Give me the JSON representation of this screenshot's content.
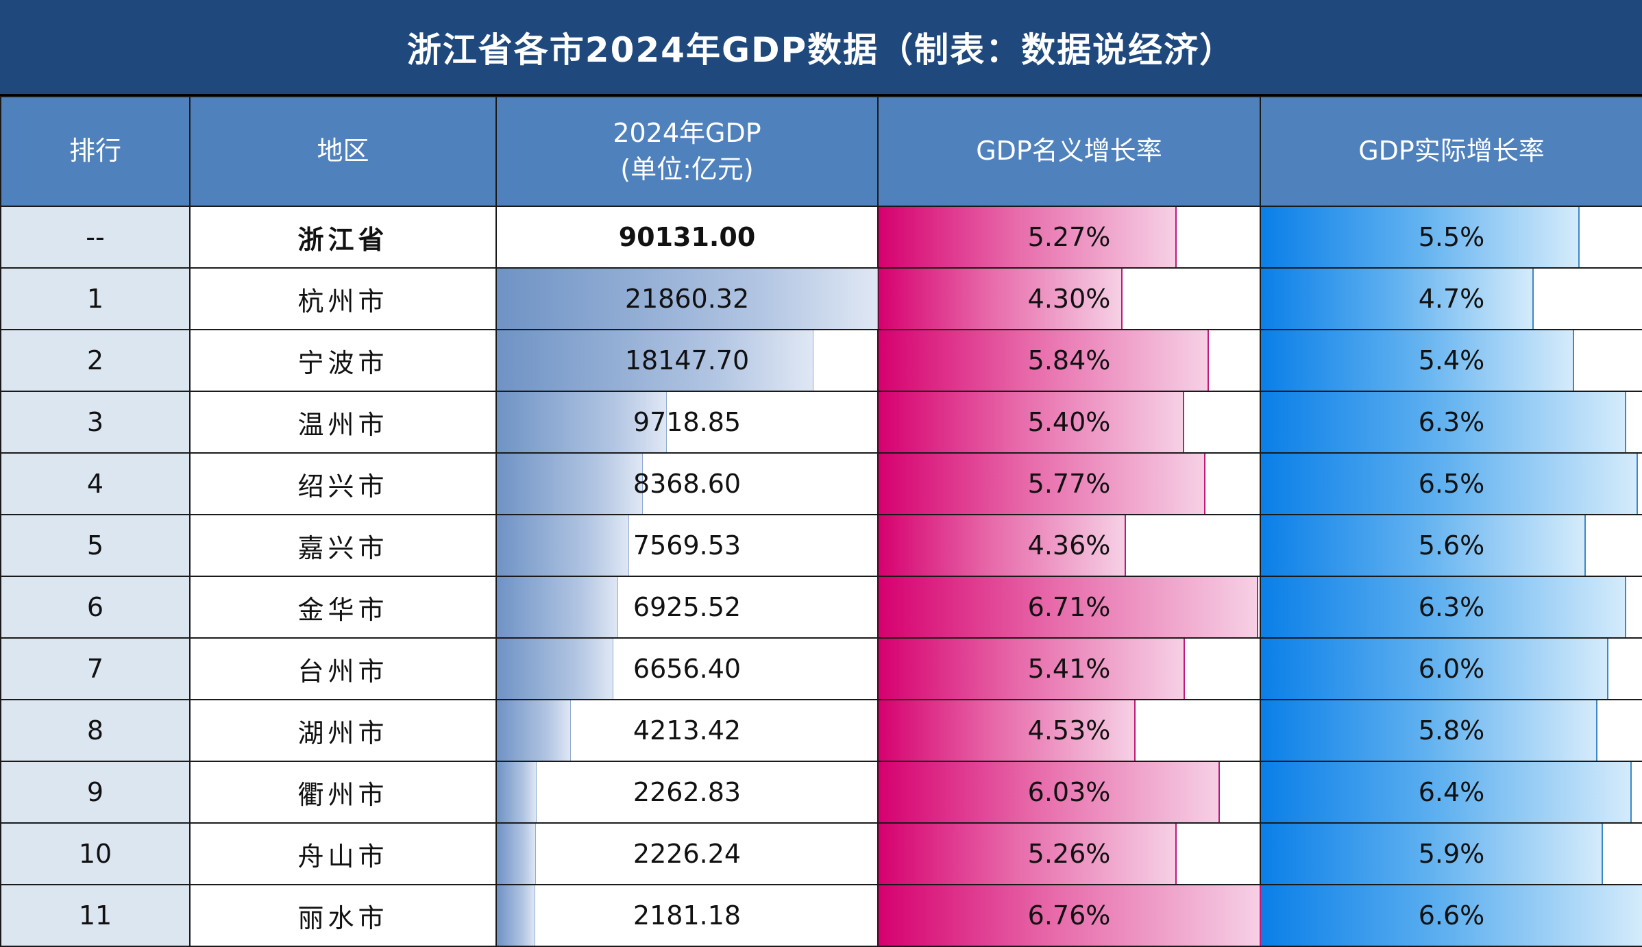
{
  "title": "浙江省各市2024年GDP数据（制表：数据说经济）",
  "headers": {
    "rank": "排行",
    "region": "地区",
    "gdp_line1": "2024年GDP",
    "gdp_line2": "(单位:亿元)",
    "nominal": "GDP名义增长率",
    "real": "GDP实际增长率"
  },
  "colors": {
    "title_bg": "#1f497d",
    "header_bg": "#4f81bd",
    "rank_bg": "#dce6f1",
    "gdp_bar": "#6f93c5",
    "nominal_bar": "#d6006f",
    "real_bar": "#0a7fe8"
  },
  "chart_data": {
    "type": "table",
    "title": "浙江省各市2024年GDP数据（制表：数据说经济）",
    "columns": [
      "排行",
      "地区",
      "2024年GDP (单位:亿元)",
      "GDP名义增长率",
      "GDP实际增长率"
    ],
    "rows": [
      {
        "rank": "--",
        "region": "浙江省",
        "gdp": 90131.0,
        "gdp_text": "90131.00",
        "nominal": 5.27,
        "nominal_text": "5.27%",
        "real": 5.5,
        "real_text": "5.5%",
        "total": true
      },
      {
        "rank": "1",
        "region": "杭州市",
        "gdp": 21860.32,
        "gdp_text": "21860.32",
        "nominal": 4.3,
        "nominal_text": "4.30%",
        "real": 4.7,
        "real_text": "4.7%"
      },
      {
        "rank": "2",
        "region": "宁波市",
        "gdp": 18147.7,
        "gdp_text": "18147.70",
        "nominal": 5.84,
        "nominal_text": "5.84%",
        "real": 5.4,
        "real_text": "5.4%"
      },
      {
        "rank": "3",
        "region": "温州市",
        "gdp": 9718.85,
        "gdp_text": "9718.85",
        "nominal": 5.4,
        "nominal_text": "5.40%",
        "real": 6.3,
        "real_text": "6.3%"
      },
      {
        "rank": "4",
        "region": "绍兴市",
        "gdp": 8368.6,
        "gdp_text": "8368.60",
        "nominal": 5.77,
        "nominal_text": "5.77%",
        "real": 6.5,
        "real_text": "6.5%"
      },
      {
        "rank": "5",
        "region": "嘉兴市",
        "gdp": 7569.53,
        "gdp_text": "7569.53",
        "nominal": 4.36,
        "nominal_text": "4.36%",
        "real": 5.6,
        "real_text": "5.6%"
      },
      {
        "rank": "6",
        "region": "金华市",
        "gdp": 6925.52,
        "gdp_text": "6925.52",
        "nominal": 6.71,
        "nominal_text": "6.71%",
        "real": 6.3,
        "real_text": "6.3%"
      },
      {
        "rank": "7",
        "region": "台州市",
        "gdp": 6656.4,
        "gdp_text": "6656.40",
        "nominal": 5.41,
        "nominal_text": "5.41%",
        "real": 6.0,
        "real_text": "6.0%"
      },
      {
        "rank": "8",
        "region": "湖州市",
        "gdp": 4213.42,
        "gdp_text": "4213.42",
        "nominal": 4.53,
        "nominal_text": "4.53%",
        "real": 5.8,
        "real_text": "5.8%"
      },
      {
        "rank": "9",
        "region": "衢州市",
        "gdp": 2262.83,
        "gdp_text": "2262.83",
        "nominal": 6.03,
        "nominal_text": "6.03%",
        "real": 6.4,
        "real_text": "6.4%"
      },
      {
        "rank": "10",
        "region": "舟山市",
        "gdp": 2226.24,
        "gdp_text": "2226.24",
        "nominal": 5.26,
        "nominal_text": "5.26%",
        "real": 5.9,
        "real_text": "5.9%"
      },
      {
        "rank": "11",
        "region": "丽水市",
        "gdp": 2181.18,
        "gdp_text": "2181.18",
        "nominal": 6.76,
        "nominal_text": "6.76%",
        "real": 6.6,
        "real_text": "6.6%"
      }
    ]
  }
}
